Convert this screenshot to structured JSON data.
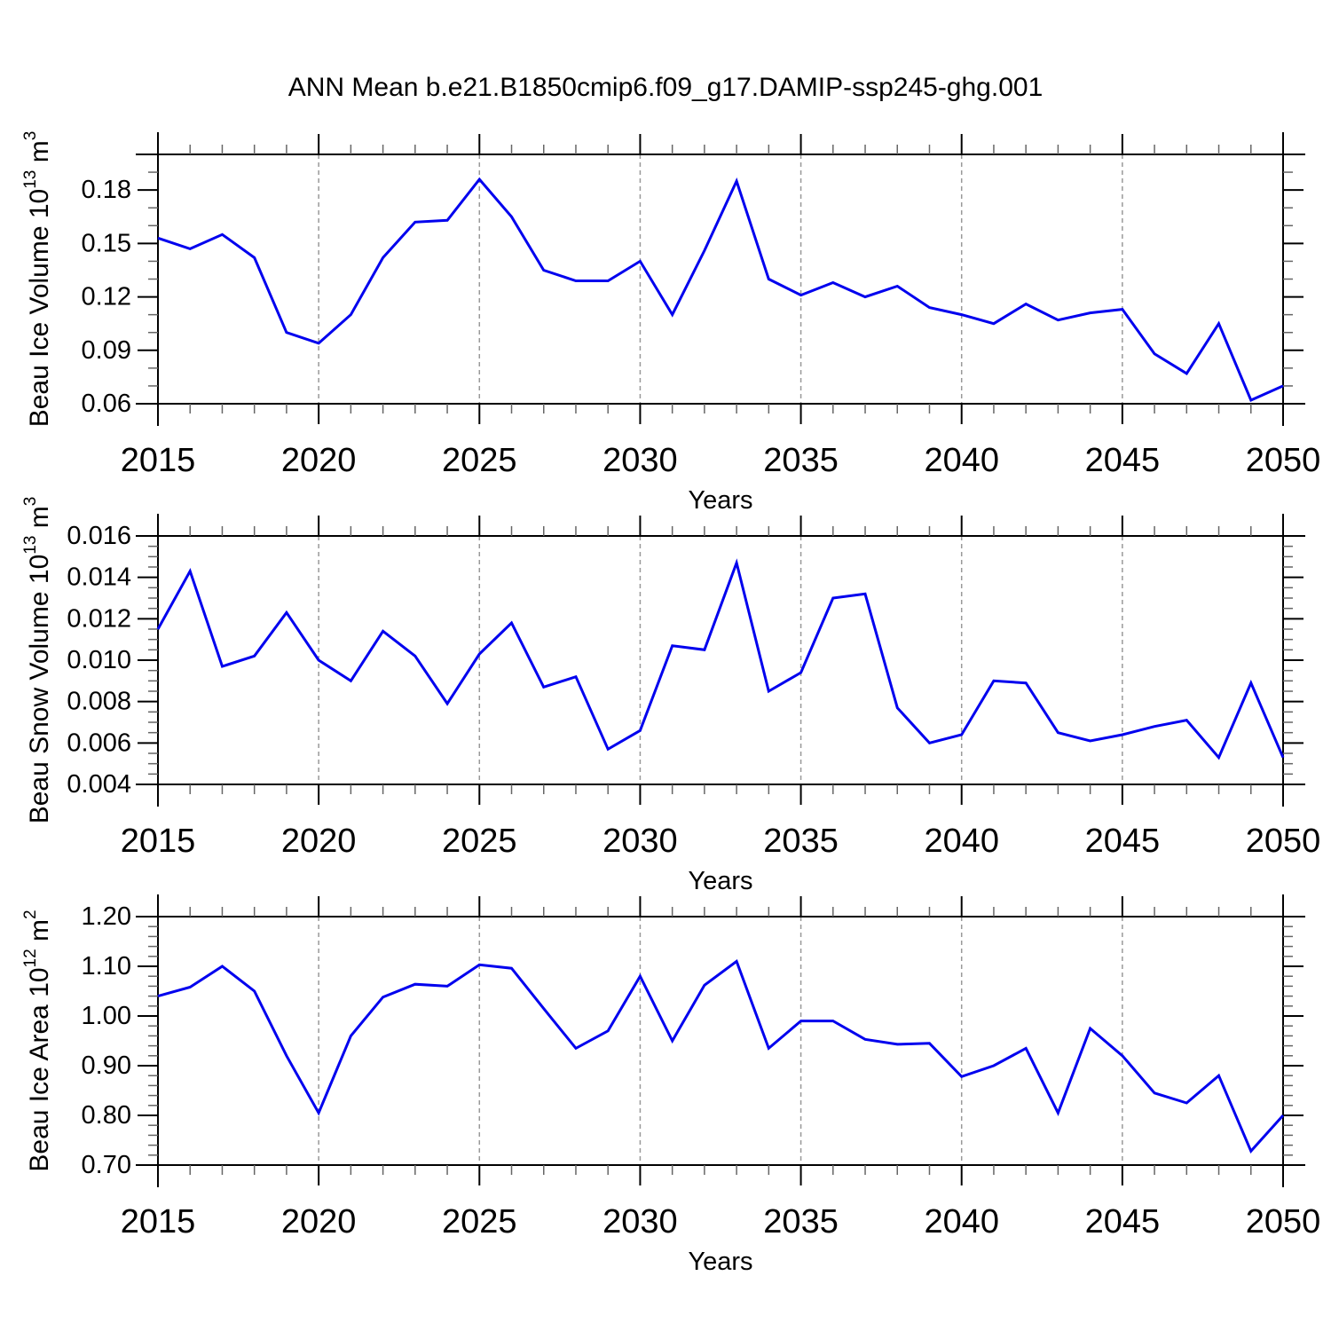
{
  "title": "ANN Mean b.e21.B1850cmip6.f09_g17.DAMIP-ssp245-ghg.001",
  "colors": {
    "line": "#0000ee",
    "axis": "#000000",
    "minor_tick": "#666666",
    "gridline": "#999999",
    "background": "#ffffff"
  },
  "chart_data": [
    {
      "type": "line",
      "name": "beau-ice-volume",
      "ylabel_parts": [
        "Beau Ice Volume 10",
        "13",
        " m",
        "3"
      ],
      "xlabel": "Years",
      "x": [
        2015,
        2016,
        2017,
        2018,
        2019,
        2020,
        2021,
        2022,
        2023,
        2024,
        2025,
        2026,
        2027,
        2028,
        2029,
        2030,
        2031,
        2032,
        2033,
        2034,
        2035,
        2036,
        2037,
        2038,
        2039,
        2040,
        2041,
        2042,
        2043,
        2044,
        2045,
        2046,
        2047,
        2048,
        2049,
        2050
      ],
      "values": [
        0.153,
        0.147,
        0.155,
        0.142,
        0.1,
        0.094,
        0.11,
        0.142,
        0.162,
        0.163,
        0.186,
        0.165,
        0.135,
        0.129,
        0.129,
        0.14,
        0.11,
        0.146,
        0.185,
        0.13,
        0.121,
        0.128,
        0.12,
        0.126,
        0.114,
        0.11,
        0.105,
        0.116,
        0.107,
        0.111,
        0.113,
        0.088,
        0.077,
        0.105,
        0.062,
        0.07
      ],
      "xlim": [
        2015,
        2050
      ],
      "ylim": [
        0.06,
        0.2
      ],
      "ytick_major": {
        "start": 0.06,
        "end": 0.18,
        "step": 0.03
      },
      "yminor_step": 0.01,
      "ydecimals": 2,
      "xtick_major_step": 5,
      "xminor_step": 1,
      "grid_years": [
        2020,
        2025,
        2030,
        2035,
        2040,
        2045
      ],
      "grid_on": true,
      "legend": "none"
    },
    {
      "type": "line",
      "name": "beau-snow-volume",
      "ylabel_parts": [
        "Beau Snow Volume 10",
        "13",
        " m",
        "3"
      ],
      "xlabel": "Years",
      "x": [
        2015,
        2016,
        2017,
        2018,
        2019,
        2020,
        2021,
        2022,
        2023,
        2024,
        2025,
        2026,
        2027,
        2028,
        2029,
        2030,
        2031,
        2032,
        2033,
        2034,
        2035,
        2036,
        2037,
        2038,
        2039,
        2040,
        2041,
        2042,
        2043,
        2044,
        2045,
        2046,
        2047,
        2048,
        2049,
        2050
      ],
      "values": [
        0.0115,
        0.0143,
        0.0097,
        0.0102,
        0.0123,
        0.01,
        0.009,
        0.0114,
        0.0102,
        0.0079,
        0.0103,
        0.0118,
        0.0087,
        0.0092,
        0.0057,
        0.0066,
        0.0107,
        0.0105,
        0.0147,
        0.0085,
        0.0094,
        0.013,
        0.0132,
        0.0077,
        0.006,
        0.0064,
        0.009,
        0.0089,
        0.0065,
        0.0061,
        0.0064,
        0.0068,
        0.0071,
        0.0053,
        0.0089,
        0.0053
      ],
      "xlim": [
        2015,
        2050
      ],
      "ylim": [
        0.004,
        0.016
      ],
      "ytick_major": {
        "start": 0.004,
        "end": 0.016,
        "step": 0.002
      },
      "yminor_step": 0.0005,
      "ydecimals": 3,
      "xtick_major_step": 5,
      "xminor_step": 1,
      "grid_years": [
        2020,
        2025,
        2030,
        2035,
        2040,
        2045
      ],
      "grid_on": true,
      "legend": "none"
    },
    {
      "type": "line",
      "name": "beau-ice-area",
      "ylabel_parts": [
        "Beau Ice Area 10",
        "12",
        " m",
        "2"
      ],
      "xlabel": "Years",
      "x": [
        2015,
        2016,
        2017,
        2018,
        2019,
        2020,
        2021,
        2022,
        2023,
        2024,
        2025,
        2026,
        2027,
        2028,
        2029,
        2030,
        2031,
        2032,
        2033,
        2034,
        2035,
        2036,
        2037,
        2038,
        2039,
        2040,
        2041,
        2042,
        2043,
        2044,
        2045,
        2046,
        2047,
        2048,
        2049,
        2050
      ],
      "values": [
        1.04,
        1.058,
        1.1,
        1.05,
        0.92,
        0.805,
        0.96,
        1.038,
        1.064,
        1.06,
        1.103,
        1.096,
        1.015,
        0.935,
        0.97,
        1.08,
        0.95,
        1.062,
        1.11,
        0.935,
        0.99,
        0.99,
        0.953,
        0.943,
        0.945,
        0.878,
        0.9,
        0.935,
        0.805,
        0.975,
        0.92,
        0.845,
        0.825,
        0.88,
        0.728,
        0.8
      ],
      "xlim": [
        2015,
        2050
      ],
      "ylim": [
        0.7,
        1.2
      ],
      "ytick_major": {
        "start": 0.7,
        "end": 1.2,
        "step": 0.1
      },
      "yminor_step": 0.02,
      "ydecimals": 2,
      "xtick_major_step": 5,
      "xminor_step": 1,
      "grid_years": [
        2020,
        2025,
        2030,
        2035,
        2040,
        2045
      ],
      "grid_on": true,
      "legend": "none"
    }
  ]
}
